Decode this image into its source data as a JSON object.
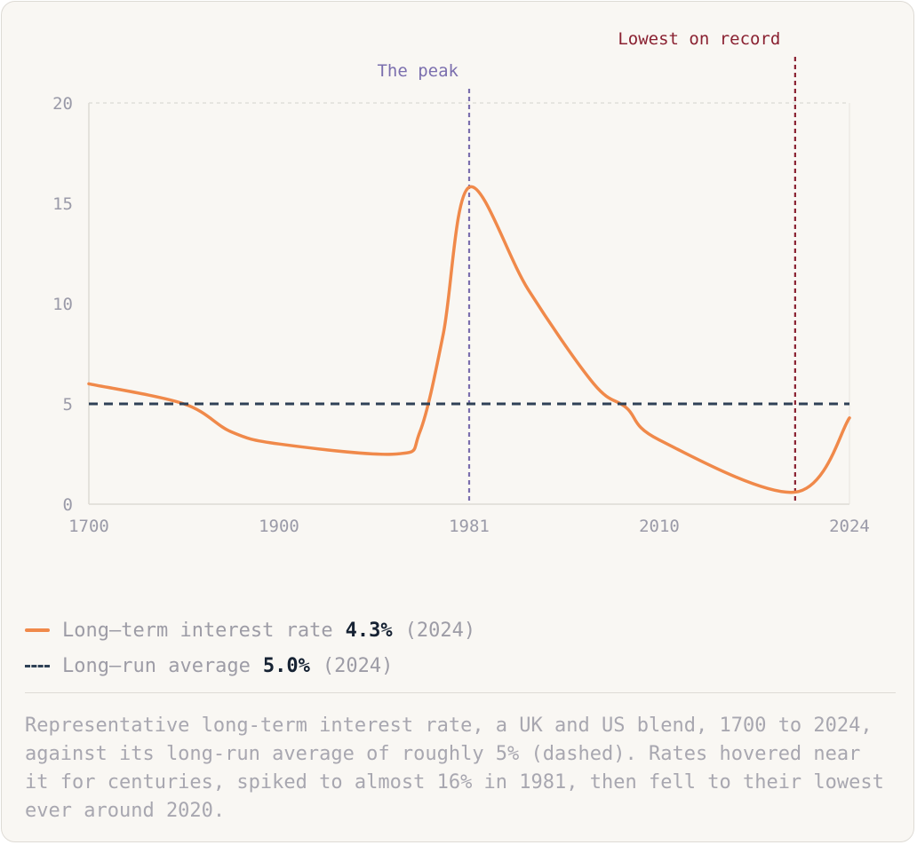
{
  "chart_data": {
    "type": "line",
    "x_ticks": [
      "1700",
      "1900",
      "1981",
      "2010",
      "2024"
    ],
    "y_ticks": [
      "0",
      "5",
      "10",
      "15",
      "20"
    ],
    "ylim": [
      0,
      20
    ],
    "grid": "top line only",
    "series": [
      {
        "name": "Long-term interest rate",
        "color": "#f0894a",
        "style": "solid",
        "points": [
          {
            "x": 1700,
            "y": 6.0
          },
          {
            "x": 1800,
            "y": 5.0
          },
          {
            "x": 1850,
            "y": 3.6
          },
          {
            "x": 1900,
            "y": 3.0
          },
          {
            "x": 1950,
            "y": 2.5
          },
          {
            "x": 1960,
            "y": 3.6
          },
          {
            "x": 1970,
            "y": 8.5
          },
          {
            "x": 1981,
            "y": 15.8
          },
          {
            "x": 1990,
            "y": 10.7
          },
          {
            "x": 2000,
            "y": 6.0
          },
          {
            "x": 2005,
            "y": 4.8
          },
          {
            "x": 2010,
            "y": 3.2
          },
          {
            "x": 2020,
            "y": 0.6
          },
          {
            "x": 2024,
            "y": 4.3
          }
        ]
      },
      {
        "name": "Long-run average",
        "color": "#2f4156",
        "style": "dashed",
        "points": [
          {
            "x": 1700,
            "y": 5.0
          },
          {
            "x": 2024,
            "y": 5.0
          }
        ]
      }
    ],
    "annotations": [
      {
        "x": 1981,
        "label": "The peak",
        "color": "#7b6fae"
      },
      {
        "x": 2020,
        "label": "Lowest on record",
        "color": "#8a2131"
      }
    ]
  },
  "legend": [
    {
      "label": "Long–term interest rate",
      "value": "4.3%",
      "year": "(2024)",
      "color": "#f0894a"
    },
    {
      "label": "Long–run average",
      "value": "5.0%",
      "year": "(2024)",
      "color": "#2f4156"
    }
  ],
  "caption": "Representative long-term interest rate, a UK and US blend, 1700 to 2024, against its long-run average of roughly 5% (dashed). Rates hovered near it for centuries, spiked to almost 16% in 1981, then fell to their lowest ever around 2020."
}
